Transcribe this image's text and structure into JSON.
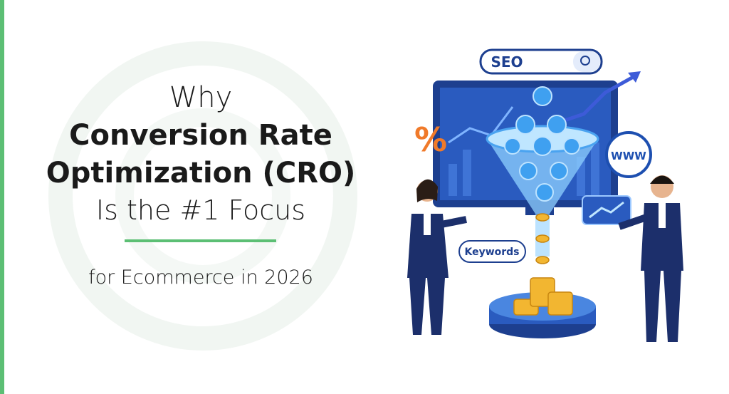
{
  "headline": {
    "line1": "Why",
    "line2": "Conversion Rate",
    "line3": "Optimization (CRO)",
    "line4": "Is the #1 Focus"
  },
  "subline": "for Ecommerce in 2026",
  "illustration": {
    "search_text": "SEO",
    "tag": "Keywords",
    "globe": "WWW",
    "badge": "%"
  }
}
